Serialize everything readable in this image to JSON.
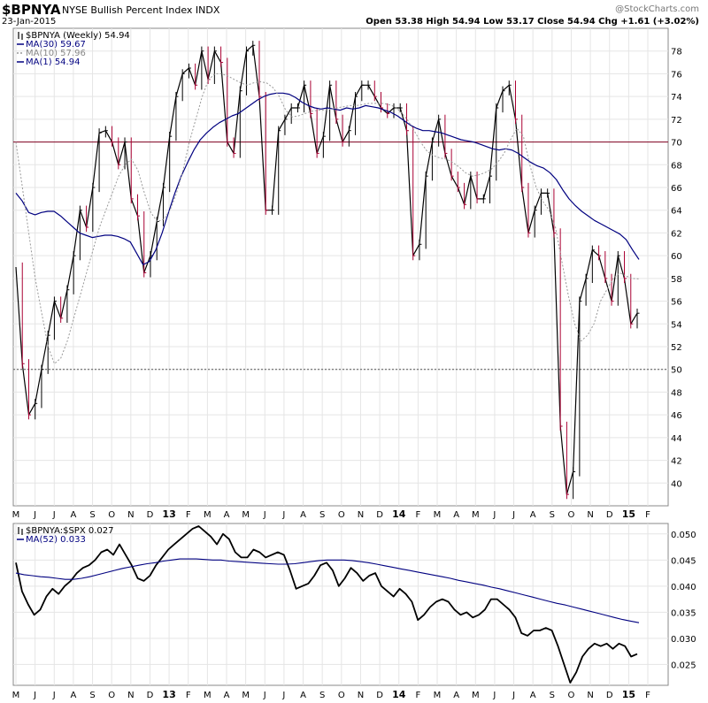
{
  "header": {
    "symbol": "$BPNYA",
    "description": "NYSE Bullish Percent Index  INDX",
    "date": "23-Jan-2015",
    "quote": "Open 53.38  High 54.94  Low 53.17  Close 54.94  Chg +1.61 (+3.02%)",
    "quote_up_symbol": "▲",
    "watermark": "@StockCharts.com"
  },
  "colors": {
    "price": "#000000",
    "down_bar": "#aa0033",
    "ma30": "#000080",
    "ma10": "#999999",
    "ref70": "#800020",
    "ref50": "#555555",
    "frame": "#888888",
    "grid": "#e5e5e5"
  },
  "chart_data": [
    {
      "type": "line",
      "title": "$BPNYA (Weekly) 54.94",
      "legend": [
        {
          "label": "$BPNYA (Weekly) 54.94",
          "key": "price"
        },
        {
          "label": "MA(30) 59.67",
          "key": "ma30"
        },
        {
          "label": "MA(10) 57.96",
          "key": "ma10"
        },
        {
          "label": "MA(1) 54.94",
          "key": "ma1"
        }
      ],
      "legend_position": "top-left",
      "ylim": [
        38,
        80
      ],
      "yticks": [
        40,
        42,
        44,
        46,
        48,
        50,
        52,
        54,
        56,
        58,
        60,
        62,
        64,
        66,
        68,
        70,
        72,
        74,
        76,
        78
      ],
      "reference_lines": [
        70,
        50
      ],
      "x_labels": [
        "M",
        "J",
        "J",
        "A",
        "S",
        "O",
        "N",
        "D",
        "13",
        "F",
        "M",
        "A",
        "M",
        "J",
        "J",
        "A",
        "S",
        "O",
        "N",
        "D",
        "14",
        "F",
        "M",
        "A",
        "M",
        "J",
        "J",
        "A",
        "S",
        "O",
        "N",
        "D",
        "15",
        "F"
      ],
      "x_labels_bold": [
        "13",
        "14",
        "15"
      ],
      "series": [
        {
          "name": "$BPNYA",
          "values": [
            59,
            50.5,
            46,
            47,
            50,
            53,
            56,
            54.5,
            57,
            60,
            64,
            62.5,
            66,
            70.8,
            71,
            70,
            68,
            70,
            65,
            63.5,
            58.5,
            60,
            63,
            66,
            70.5,
            74,
            76,
            76.5,
            75,
            78,
            75.5,
            78,
            77,
            70,
            69,
            74.5,
            78,
            78.5,
            74,
            64,
            64,
            71,
            72,
            73,
            73,
            75,
            72.5,
            69,
            70.5,
            75,
            72,
            70,
            71,
            74,
            75,
            75,
            74,
            73,
            72.5,
            73,
            73,
            71,
            60,
            61,
            67,
            70,
            72,
            69,
            67,
            66,
            64.5,
            67,
            65,
            65,
            67,
            73,
            74.5,
            75,
            72,
            66,
            62,
            64,
            65.5,
            65.5,
            62,
            45,
            39,
            41,
            56,
            58,
            60.5,
            60,
            58,
            56,
            60,
            58,
            54,
            54.94
          ]
        },
        {
          "name": "MA(30)",
          "values": [
            65.5,
            64.8,
            63.8,
            63.6,
            63.8,
            63.9,
            63.9,
            63.5,
            63.0,
            62.5,
            62.0,
            61.8,
            61.6,
            61.7,
            61.8,
            61.8,
            61.7,
            61.5,
            61.2,
            60.2,
            59.2,
            59.5,
            60.5,
            62.0,
            63.8,
            65.5,
            67.0,
            68.2,
            69.3,
            70.2,
            70.8,
            71.3,
            71.7,
            72.0,
            72.3,
            72.5,
            72.9,
            73.3,
            73.7,
            74.0,
            74.2,
            74.3,
            74.3,
            74.2,
            73.9,
            73.5,
            73.2,
            73.0,
            72.9,
            73.0,
            72.9,
            72.8,
            73.0,
            72.9,
            73.0,
            73.2,
            73.1,
            73.0,
            72.8,
            72.6,
            72.3,
            71.9,
            71.5,
            71.2,
            71.0,
            71.0,
            70.9,
            70.8,
            70.6,
            70.4,
            70.2,
            70.1,
            70.0,
            69.8,
            69.6,
            69.4,
            69.3,
            69.4,
            69.3,
            69.0,
            68.6,
            68.2,
            67.9,
            67.7,
            67.3,
            66.7,
            65.8,
            65.0,
            64.4,
            63.9,
            63.5,
            63.1,
            62.8,
            62.5,
            62.2,
            61.9,
            61.4,
            60.5,
            59.67
          ]
        },
        {
          "name": "MA(10)",
          "values": [
            70,
            66,
            62,
            58,
            55,
            52,
            50.5,
            51,
            52.5,
            54.5,
            56.5,
            58.5,
            60.5,
            62.5,
            64,
            65.5,
            67,
            68,
            68.5,
            67.5,
            65.5,
            63.8,
            63,
            63.2,
            64,
            65.5,
            67.5,
            70,
            72,
            74,
            75.5,
            76,
            76,
            75.8,
            75.5,
            75.2,
            75,
            75.2,
            75.3,
            75.2,
            74.8,
            74,
            72.8,
            72.2,
            72.3,
            72.5,
            72.7,
            72.8,
            72.8,
            72.9,
            73,
            73.1,
            73.2,
            73.2,
            73.3,
            73.4,
            73.4,
            73.4,
            73.3,
            73.1,
            72.6,
            71.9,
            71,
            70,
            69.2,
            68.8,
            68.6,
            68.5,
            68.2,
            67.8,
            67.3,
            67,
            67.1,
            67.3,
            67.6,
            68.2,
            69,
            70.2,
            71.2,
            70.5,
            68,
            66,
            64.8,
            64,
            62.5,
            59.5,
            56.5,
            54,
            52.5,
            53,
            54,
            56,
            57,
            58,
            58.5,
            58.2,
            58,
            57.96
          ]
        }
      ]
    },
    {
      "type": "line",
      "title": "$BPNYA:$SPX 0.027",
      "legend": [
        {
          "label": "$BPNYA:$SPX 0.027",
          "key": "ratio"
        },
        {
          "label": "MA(52) 0.033",
          "key": "ma52"
        }
      ],
      "legend_position": "top-left",
      "ylim": [
        0.021,
        0.052
      ],
      "yticks": [
        0.025,
        0.03,
        0.035,
        0.04,
        0.045,
        0.05
      ],
      "ytick_labels": [
        "0.025",
        "0.030",
        "0.035",
        "0.040",
        "0.045",
        "0.050"
      ],
      "x_labels": [
        "M",
        "J",
        "J",
        "A",
        "S",
        "O",
        "N",
        "D",
        "13",
        "F",
        "M",
        "A",
        "M",
        "J",
        "J",
        "A",
        "S",
        "O",
        "N",
        "D",
        "14",
        "F",
        "M",
        "A",
        "M",
        "J",
        "J",
        "A",
        "S",
        "O",
        "N",
        "D",
        "15",
        "F"
      ],
      "x_labels_bold": [
        "13",
        "14",
        "15"
      ],
      "series": [
        {
          "name": "$BPNYA:$SPX",
          "values": [
            0.0445,
            0.039,
            0.0365,
            0.0345,
            0.0355,
            0.038,
            0.0395,
            0.0385,
            0.04,
            0.041,
            0.0425,
            0.0435,
            0.044,
            0.045,
            0.0465,
            0.047,
            0.046,
            0.048,
            0.046,
            0.044,
            0.0415,
            0.041,
            0.042,
            0.044,
            0.0455,
            0.047,
            0.048,
            0.049,
            0.05,
            0.051,
            0.0515,
            0.0505,
            0.0495,
            0.048,
            0.05,
            0.049,
            0.0465,
            0.0455,
            0.0455,
            0.047,
            0.0465,
            0.0455,
            0.046,
            0.0465,
            0.046,
            0.043,
            0.0395,
            0.04,
            0.0405,
            0.042,
            0.044,
            0.0445,
            0.043,
            0.04,
            0.0415,
            0.0435,
            0.0425,
            0.041,
            0.042,
            0.0425,
            0.04,
            0.039,
            0.038,
            0.0395,
            0.0385,
            0.037,
            0.0335,
            0.0345,
            0.036,
            0.037,
            0.0375,
            0.037,
            0.0355,
            0.0345,
            0.035,
            0.034,
            0.0345,
            0.0355,
            0.0375,
            0.0375,
            0.0365,
            0.0355,
            0.034,
            0.031,
            0.0305,
            0.0315,
            0.0315,
            0.032,
            0.0315,
            0.0285,
            0.025,
            0.0215,
            0.0235,
            0.0265,
            0.028,
            0.029,
            0.0285,
            0.029,
            0.028,
            0.029,
            0.0285,
            0.0265,
            0.027
          ]
        },
        {
          "name": "MA(52)",
          "values": [
            0.0425,
            0.0422,
            0.042,
            0.0418,
            0.0417,
            0.0415,
            0.0413,
            0.0413,
            0.0415,
            0.0418,
            0.0422,
            0.0426,
            0.043,
            0.0434,
            0.0437,
            0.044,
            0.0443,
            0.0445,
            0.0448,
            0.045,
            0.0452,
            0.0452,
            0.0452,
            0.0451,
            0.045,
            0.045,
            0.0448,
            0.0447,
            0.0446,
            0.0445,
            0.0444,
            0.0443,
            0.0442,
            0.0442,
            0.0443,
            0.0445,
            0.0447,
            0.0449,
            0.045,
            0.045,
            0.045,
            0.0449,
            0.0447,
            0.0445,
            0.0442,
            0.0439,
            0.0436,
            0.0433,
            0.043,
            0.0427,
            0.0424,
            0.0421,
            0.0418,
            0.0415,
            0.0411,
            0.0408,
            0.0405,
            0.0402,
            0.0398,
            0.0395,
            0.0391,
            0.0387,
            0.0383,
            0.0379,
            0.0375,
            0.0371,
            0.0367,
            0.0364,
            0.036,
            0.0356,
            0.0352,
            0.0348,
            0.0344,
            0.034,
            0.0336,
            0.0333,
            0.033
          ]
        }
      ]
    }
  ]
}
